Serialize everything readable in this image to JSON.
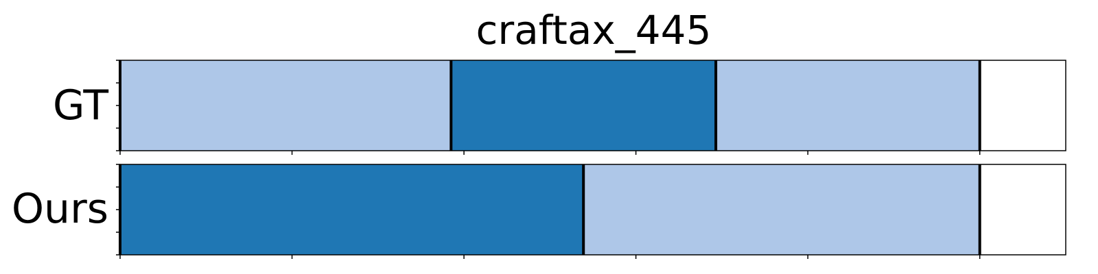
{
  "chart_data": {
    "type": "segmentation-timeline",
    "title": "craftax_445",
    "xlim": [
      0,
      1100
    ],
    "boundary_color": "#000000",
    "colors": {
      "light": "#aec7e8",
      "dark": "#1f77b4"
    },
    "x_ticks": [
      0,
      200,
      400,
      600,
      800,
      1000
    ],
    "rows": [
      {
        "label": "GT",
        "segments": [
          {
            "start": 0,
            "end": 385,
            "color": "light"
          },
          {
            "start": 385,
            "end": 693,
            "color": "dark"
          },
          {
            "start": 693,
            "end": 1000,
            "color": "light"
          }
        ],
        "boundaries": [
          0,
          385,
          693,
          1000
        ]
      },
      {
        "label": "Ours",
        "segments": [
          {
            "start": 0,
            "end": 539,
            "color": "dark"
          },
          {
            "start": 539,
            "end": 1000,
            "color": "light"
          }
        ],
        "boundaries": [
          0,
          539,
          1000
        ]
      }
    ]
  }
}
